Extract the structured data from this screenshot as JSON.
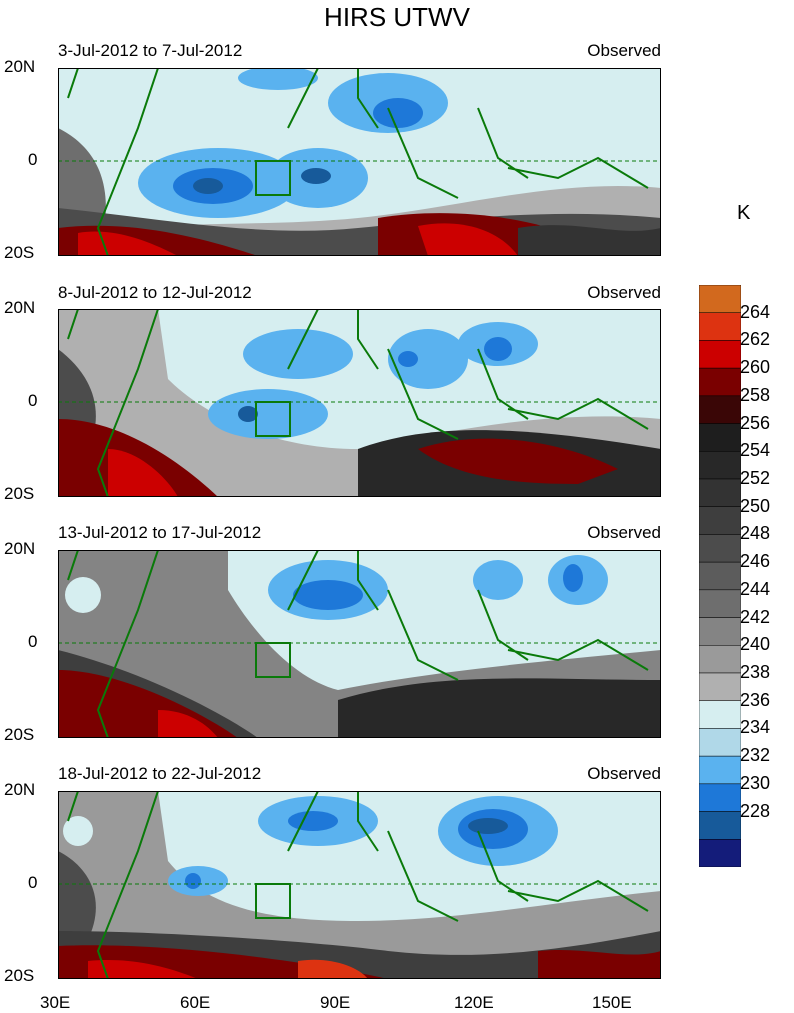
{
  "title": "HIRS UTWV",
  "unit": "K",
  "panels": [
    {
      "left": "3-Jul-2012 to 7-Jul-2012",
      "right": "Observed"
    },
    {
      "left": "8-Jul-2012 to 12-Jul-2012",
      "right": "Observed"
    },
    {
      "left": "13-Jul-2012 to 17-Jul-2012",
      "right": "Observed"
    },
    {
      "left": "18-Jul-2012 to 22-Jul-2012",
      "right": "Observed"
    }
  ],
  "lat_labels": [
    "20N",
    "0",
    "20S"
  ],
  "lon_labels": [
    "30E",
    "60E",
    "90E",
    "120E",
    "150E"
  ],
  "colorbar": {
    "labels": [
      "264",
      "262",
      "260",
      "258",
      "256",
      "254",
      "252",
      "250",
      "248",
      "246",
      "244",
      "242",
      "240",
      "238",
      "236",
      "234",
      "232",
      "230",
      "228"
    ],
    "colors": [
      "#d2691e",
      "#dd3311",
      "#cc0000",
      "#7a0000",
      "#3a0606",
      "#1e1e1e",
      "#282828",
      "#333333",
      "#3e3e3e",
      "#4c4c4c",
      "#5c5c5c",
      "#6e6e6e",
      "#848484",
      "#9a9a9a",
      "#b0b0b0",
      "#d6eef0",
      "#b0d8e8",
      "#5ab2ef",
      "#1e78d8",
      "#175a9a",
      "#141c7a"
    ]
  },
  "chart_data": {
    "type": "heatmap",
    "title": "HIRS UTWV",
    "xlabel": "",
    "ylabel": "",
    "x_range": [
      30,
      160
    ],
    "y_range": [
      -20,
      20
    ],
    "x_ticks": [
      "30E",
      "60E",
      "90E",
      "120E",
      "150E"
    ],
    "y_ticks": [
      "20N",
      "0",
      "20S"
    ],
    "colorbar_unit": "K",
    "colorbar_range": [
      228,
      264
    ],
    "colorbar_step": 2,
    "panels": [
      {
        "period": "3-Jul-2012 to 7-Jul-2012",
        "label": "Observed"
      },
      {
        "period": "8-Jul-2012 to 12-Jul-2012",
        "label": "Observed"
      },
      {
        "period": "13-Jul-2012 to 17-Jul-2012",
        "label": "Observed"
      },
      {
        "period": "18-Jul-2012 to 22-Jul-2012",
        "label": "Observed"
      }
    ]
  }
}
